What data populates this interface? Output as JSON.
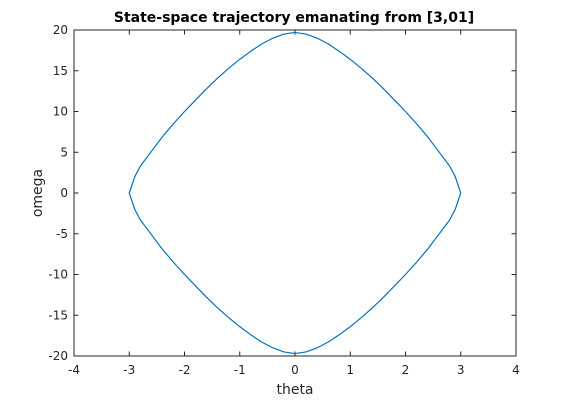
{
  "chart_data": {
    "type": "line",
    "title": "State-space trajectory emanating from [3,01]",
    "xlabel": "theta",
    "ylabel": "omega",
    "xlim": [
      -4,
      4
    ],
    "ylim": [
      -20,
      20
    ],
    "xticks": [
      -4,
      -3,
      -2,
      -1,
      0,
      1,
      2,
      3,
      4
    ],
    "yticks": [
      -20,
      -15,
      -10,
      -5,
      0,
      5,
      10,
      15,
      20
    ],
    "grid": false,
    "line_color": "#0072BD",
    "series": [
      {
        "x": [
          3.0,
          2.9,
          2.8,
          2.6,
          2.4,
          2.2,
          2.0,
          1.8,
          1.6,
          1.4,
          1.2,
          1.0,
          0.8,
          0.6,
          0.4,
          0.2,
          0.0,
          -0.2,
          -0.4,
          -0.6,
          -0.8,
          -1.0,
          -1.2,
          -1.4,
          -1.6,
          -1.8,
          -2.0,
          -2.2,
          -2.4,
          -2.6,
          -2.8,
          -2.9,
          -3.0,
          -2.9,
          -2.8,
          -2.6,
          -2.4,
          -2.2,
          -2.0,
          -1.8,
          -1.6,
          -1.4,
          -1.2,
          -1.0,
          -0.8,
          -0.6,
          -0.4,
          -0.2,
          0.0,
          0.2,
          0.4,
          0.6,
          0.8,
          1.0,
          1.2,
          1.4,
          1.6,
          1.8,
          2.0,
          2.2,
          2.4,
          2.6,
          2.8,
          2.9,
          3.0
        ],
        "y": [
          0.0,
          2.0,
          3.3,
          5.1,
          6.9,
          8.5,
          10.0,
          11.4,
          12.8,
          14.1,
          15.3,
          16.4,
          17.4,
          18.3,
          19.0,
          19.5,
          19.7,
          19.5,
          19.0,
          18.3,
          17.4,
          16.4,
          15.3,
          14.1,
          12.8,
          11.4,
          10.0,
          8.5,
          6.9,
          5.1,
          3.3,
          2.0,
          0.0,
          -2.0,
          -3.3,
          -5.1,
          -6.9,
          -8.5,
          -10.0,
          -11.4,
          -12.8,
          -14.1,
          -15.3,
          -16.4,
          -17.4,
          -18.3,
          -19.0,
          -19.5,
          -19.7,
          -19.5,
          -19.0,
          -18.3,
          -17.4,
          -16.4,
          -15.3,
          -14.1,
          -12.8,
          -11.4,
          -10.0,
          -8.5,
          -6.9,
          -5.1,
          -3.3,
          -2.0,
          0.0
        ]
      }
    ]
  }
}
